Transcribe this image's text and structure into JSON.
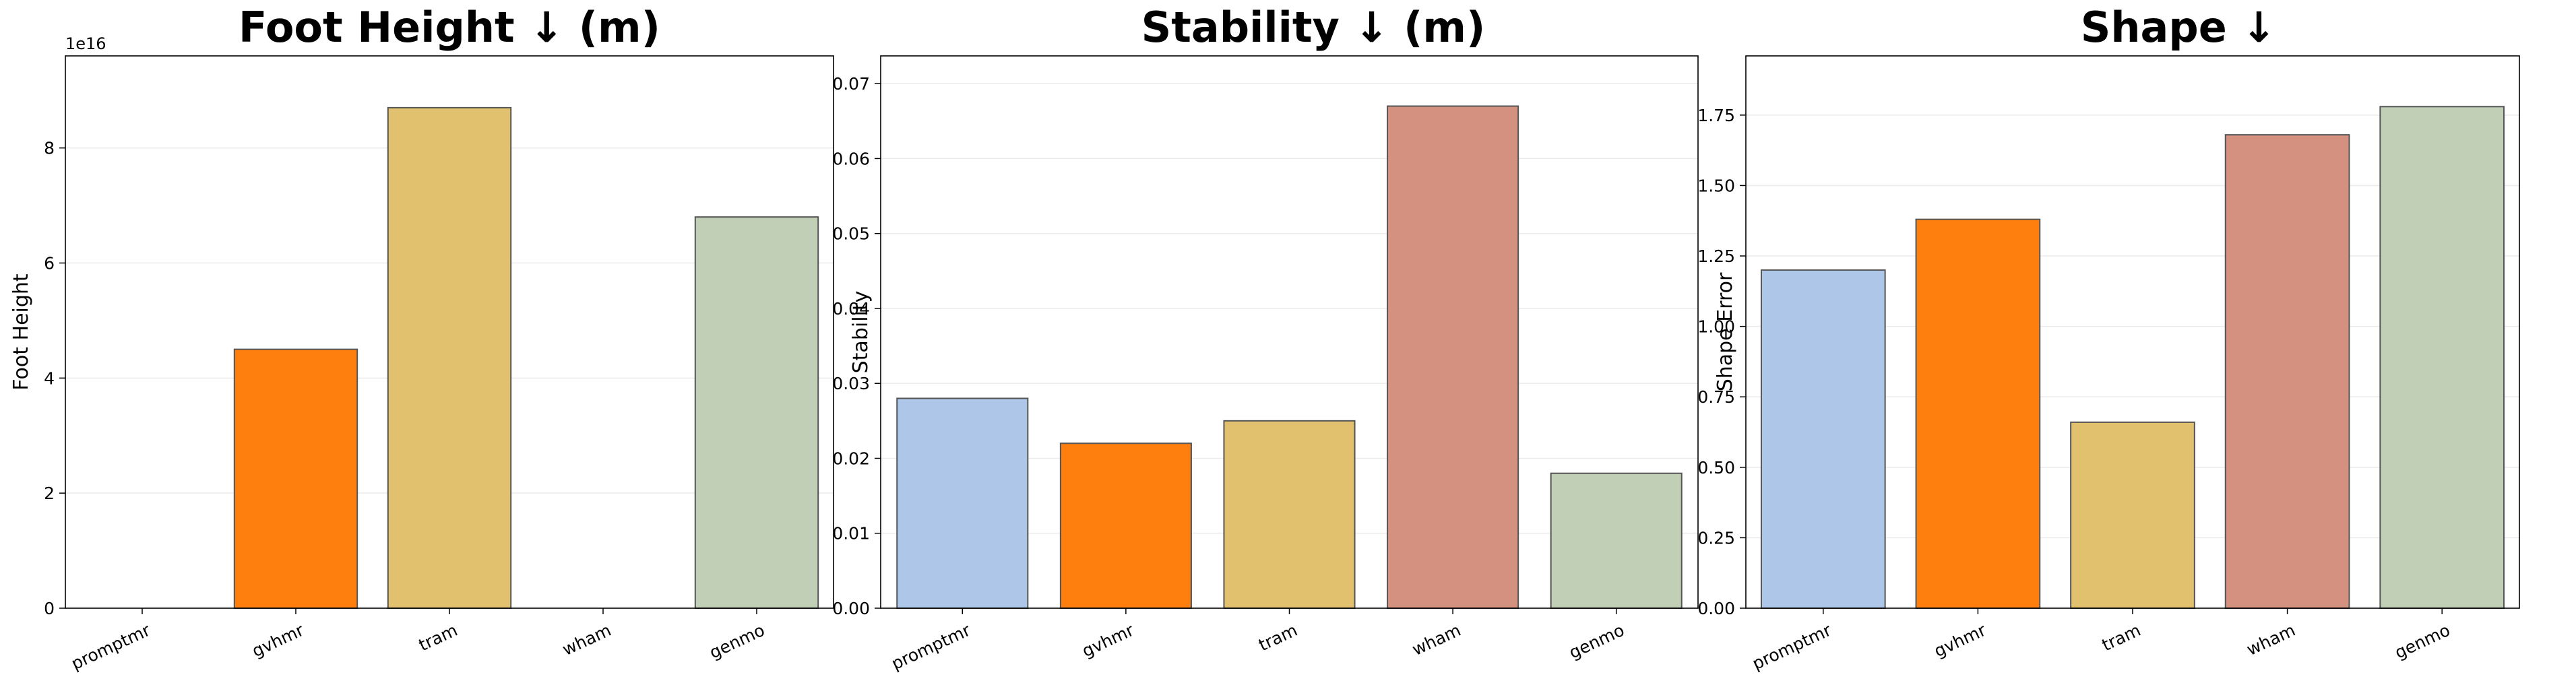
{
  "chart_data": [
    {
      "type": "bar",
      "title": "Foot Height ↓ (m)",
      "xlabel": "",
      "ylabel": "Foot Height",
      "scale_note": "1e16",
      "categories": [
        "promptmr",
        "gvhmr",
        "tram",
        "wham",
        "genmo"
      ],
      "values": [
        0,
        4.5,
        8.7,
        0,
        6.8
      ],
      "colors": [
        "#aec7e8",
        "#ff7f0e",
        "#e1c16e",
        "#d4917f",
        "#c1cfb6"
      ],
      "ylim": [
        0,
        9.6
      ],
      "yticks": [
        0,
        2,
        4,
        6,
        8
      ],
      "ytick_labels": [
        "0",
        "2",
        "4",
        "6",
        "8"
      ],
      "grid": "horizontal"
    },
    {
      "type": "bar",
      "title": "Stability ↓ (m)",
      "xlabel": "",
      "ylabel": "Stability",
      "categories": [
        "promptmr",
        "gvhmr",
        "tram",
        "wham",
        "genmo"
      ],
      "values": [
        0.028,
        0.022,
        0.025,
        0.067,
        0.018
      ],
      "colors": [
        "#aec7e8",
        "#ff7f0e",
        "#e1c16e",
        "#d4917f",
        "#c1cfb6"
      ],
      "ylim": [
        0,
        0.0737
      ],
      "yticks": [
        0,
        0.01,
        0.02,
        0.03,
        0.04,
        0.05,
        0.06,
        0.07
      ],
      "ytick_labels": [
        "0.00",
        "0.01",
        "0.02",
        "0.03",
        "0.04",
        "0.05",
        "0.06",
        "0.07"
      ],
      "grid": "horizontal"
    },
    {
      "type": "bar",
      "title": "Shape ↓",
      "xlabel": "",
      "ylabel": "Shape Error",
      "categories": [
        "promptmr",
        "gvhmr",
        "tram",
        "wham",
        "genmo"
      ],
      "values": [
        1.2,
        1.38,
        0.66,
        1.68,
        1.78
      ],
      "colors": [
        "#aec7e8",
        "#ff7f0e",
        "#e1c16e",
        "#d4917f",
        "#c1cfb6"
      ],
      "ylim": [
        0,
        1.96
      ],
      "yticks": [
        0,
        0.25,
        0.5,
        0.75,
        1.0,
        1.25,
        1.5,
        1.75
      ],
      "ytick_labels": [
        "0.00",
        "0.25",
        "0.50",
        "0.75",
        "1.00",
        "1.25",
        "1.50",
        "1.75"
      ],
      "grid": "horizontal"
    }
  ]
}
